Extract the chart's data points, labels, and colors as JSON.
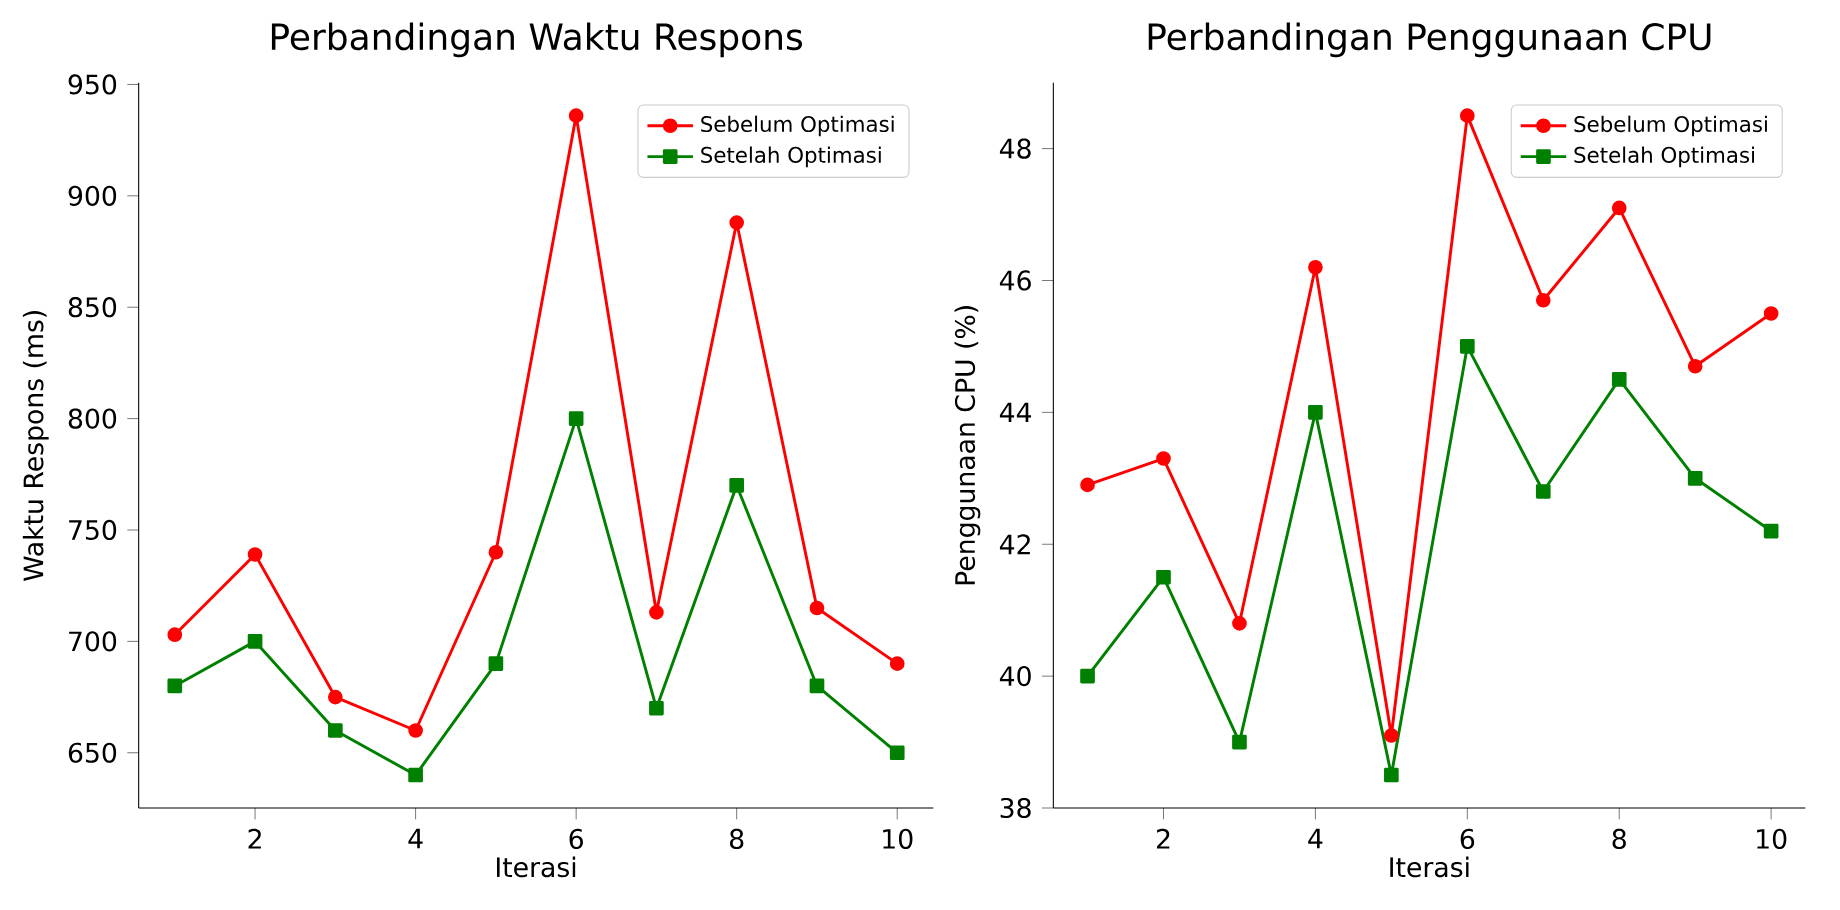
{
  "chart_data": [
    {
      "type": "line",
      "title": "Perbandingan Waktu Respons",
      "xlabel": "Iterasi",
      "ylabel": "Waktu Respons (ms)",
      "x": [
        1,
        2,
        3,
        4,
        5,
        6,
        7,
        8,
        9,
        10
      ],
      "xlim": [
        0.55,
        10.45
      ],
      "ylim": [
        625.2,
        950.8
      ],
      "xticks": [
        2,
        4,
        6,
        8,
        10
      ],
      "yticks": [
        650,
        700,
        750,
        800,
        850,
        900,
        950
      ],
      "legend": "top right",
      "line_style": "solid",
      "series": [
        {
          "name": "Sebelum Optimasi",
          "color": "#ff0000",
          "marker": "circle",
          "values": [
            703,
            739,
            675,
            660,
            740,
            936,
            713,
            888,
            715,
            690
          ]
        },
        {
          "name": "Setelah Optimasi",
          "color": "#008000",
          "marker": "square",
          "values": [
            680,
            700,
            660,
            640,
            690,
            800,
            670,
            770,
            680,
            650
          ]
        }
      ]
    },
    {
      "type": "line",
      "title": "Perbandingan Penggunaan CPU",
      "xlabel": "Iterasi",
      "ylabel": "Penggunaan CPU (%)",
      "x": [
        1,
        2,
        3,
        4,
        5,
        6,
        7,
        8,
        9,
        10
      ],
      "xlim": [
        0.55,
        10.45
      ],
      "ylim": [
        38,
        49
      ],
      "xticks": [
        2,
        4,
        6,
        8,
        10
      ],
      "yticks": [
        38,
        40,
        42,
        44,
        46,
        48
      ],
      "legend": "top right",
      "line_style": "solid",
      "series": [
        {
          "name": "Sebelum Optimasi",
          "color": "#ff0000",
          "marker": "circle",
          "values": [
            42.9,
            43.3,
            40.8,
            46.2,
            39.1,
            48.5,
            45.7,
            47.1,
            44.7,
            45.5
          ]
        },
        {
          "name": "Setelah Optimasi",
          "color": "#008000",
          "marker": "square",
          "values": [
            40.0,
            41.5,
            39.0,
            44.0,
            38.5,
            45.0,
            42.8,
            44.5,
            43.0,
            42.2
          ]
        }
      ]
    }
  ]
}
